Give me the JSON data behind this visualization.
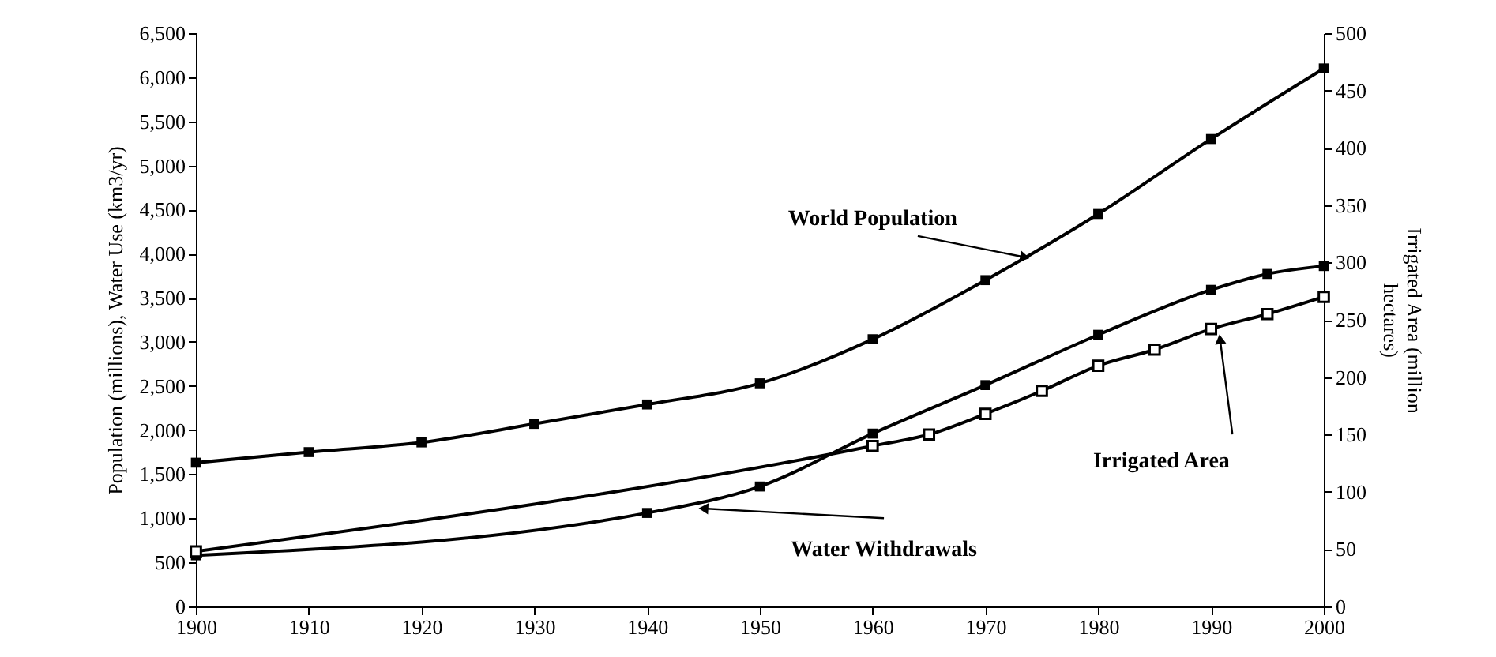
{
  "chart_data": {
    "type": "line",
    "ylabel": "Population (millions), Water Use (km3/yr)",
    "y2label": "Irrigated Area (million hectares)",
    "xlim": [
      1900,
      2000
    ],
    "xticks": [
      1900,
      1910,
      1920,
      1930,
      1940,
      1950,
      1960,
      1970,
      1980,
      1990,
      2000
    ],
    "ylim": [
      0,
      6500
    ],
    "yticks": [
      0,
      500,
      {
        "value": 1000,
        "label": "1,000"
      },
      {
        "value": 1500,
        "label": "1,500"
      },
      {
        "value": 2000,
        "label": "2,000"
      },
      {
        "value": 2500,
        "label": "2,500"
      },
      {
        "value": 3000,
        "label": "3,000"
      },
      {
        "value": 3500,
        "label": "3,500"
      },
      {
        "value": 4000,
        "label": "4,000"
      },
      {
        "value": 4500,
        "label": "4,500"
      },
      {
        "value": 5000,
        "label": "5,000"
      },
      {
        "value": 5500,
        "label": "5,500"
      },
      {
        "value": 6000,
        "label": "6,000"
      },
      {
        "value": 6500,
        "label": "6,500"
      }
    ],
    "y2lim": [
      0,
      500
    ],
    "y2ticks": [
      0,
      50,
      100,
      150,
      200,
      250,
      300,
      350,
      400,
      450,
      500
    ],
    "grid": false,
    "legend": false,
    "marker": "square",
    "series": [
      {
        "name": "World Population",
        "color": "#000000",
        "x": [
          1900,
          1910,
          1920,
          1930,
          1940,
          1950,
          1960,
          1970,
          1980,
          1990,
          2000
        ],
        "values": [
          1630,
          1750,
          1860,
          2070,
          2290,
          2530,
          3030,
          3700,
          4450,
          5300,
          6100
        ]
      },
      {
        "name": "Water Withdrawals",
        "color": "#000000",
        "x": [
          1900,
          1940,
          1950,
          1960,
          1970,
          1980,
          1990,
          1995,
          2000
        ],
        "values": [
          580,
          1060,
          1360,
          1960,
          2510,
          3080,
          3590,
          3770,
          3860
        ]
      },
      {
        "name": "Irrigated Area",
        "color": "#000000",
        "axis": "y2",
        "x": [
          1900,
          1960,
          1965,
          1970,
          1975,
          1980,
          1985,
          1990,
          1995,
          2000
        ],
        "values": [
          48,
          140,
          150,
          168,
          188,
          210,
          224,
          242,
          255,
          270
        ]
      }
    ]
  }
}
